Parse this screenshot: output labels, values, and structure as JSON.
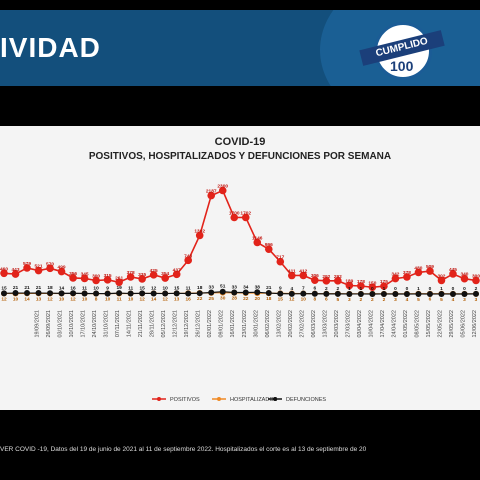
{
  "header": {
    "title": "IVIDAD"
  },
  "badge": {
    "ribbon": "CUMPLIDO",
    "number": "100"
  },
  "footer": {
    "text": "VER COVID -19, Datos del 19 de junio de 2021 al 11 de septiembre 2022.  Hospitalizados el corte es al 13 de septiembre de 20"
  },
  "colors": {
    "positivos": "#e2231a",
    "hospitalizados": "#f08a24",
    "defunciones": "#111111",
    "header": "#134f7c"
  },
  "chart_data": {
    "type": "line",
    "title": "COVID-19",
    "subtitle": "POSITIVOS, HOSPITALIZADOS Y DEFUNCIONES POR SEMANA",
    "legend": {
      "placement": "bottom"
    },
    "categories": [
      "",
      "",
      "",
      "19/09/2021",
      "26/09/2021",
      "03/10/2021",
      "10/10/2021",
      "17/10/2021",
      "24/10/2021",
      "31/10/2021",
      "07/11/2021",
      "14/11/2021",
      "21/11/2021",
      "28/11/2021",
      "05/12/2021",
      "12/12/2021",
      "19/12/2021",
      "26/12/2021",
      "02/01/2022",
      "09/01/2022",
      "16/01/2022",
      "23/01/2022",
      "30/01/2022",
      "06/02/2022",
      "13/02/2022",
      "20/02/2022",
      "27/02/2022",
      "06/03/2022",
      "13/03/2022",
      "20/03/2022",
      "27/03/2022",
      "03/04/2022",
      "10/04/2022",
      "17/04/2022",
      "24/04/2022",
      "01/05/2022",
      "08/05/2022",
      "15/05/2022",
      "22/05/2022",
      "29/05/2022",
      "05/06/2022",
      "12/06/2022"
    ],
    "series": [
      {
        "name": "POSITIVOS",
        "values": [
          460,
          443,
          579,
          521,
          570,
          499,
          356,
          345,
          300,
          315,
          261,
          378,
          335,
          425,
          354,
          437,
          748,
          1302,
          2187,
          2300,
          1700,
          1702,
          1146,
          996,
          717,
          411,
          412,
          306,
          292,
          292,
          189,
          178,
          150,
          175,
          342,
          378,
          480,
          509,
          302,
          445,
          340,
          300
        ]
      },
      {
        "name": "HOSPITALIZADOS",
        "values": [
          12,
          10,
          14,
          13,
          12,
          10,
          12,
          10,
          8,
          10,
          11,
          10,
          12,
          14,
          12,
          13,
          16,
          22,
          25,
          30,
          28,
          22,
          20,
          18,
          15,
          12,
          10,
          8,
          6,
          5,
          3,
          2,
          2,
          2,
          3,
          4,
          5,
          6,
          5,
          4,
          3,
          3
        ]
      },
      {
        "name": "DEFUNCIONES",
        "values": [
          15,
          21,
          21,
          21,
          18,
          14,
          16,
          11,
          10,
          9,
          19,
          11,
          15,
          12,
          10,
          15,
          11,
          18,
          33,
          51,
          33,
          34,
          38,
          21,
          9,
          4,
          7,
          6,
          2,
          2,
          1,
          1,
          0,
          1,
          0,
          0,
          1,
          0,
          1,
          0,
          0,
          2
        ]
      }
    ],
    "ylim": [
      0,
      2400
    ],
    "grid": false
  }
}
